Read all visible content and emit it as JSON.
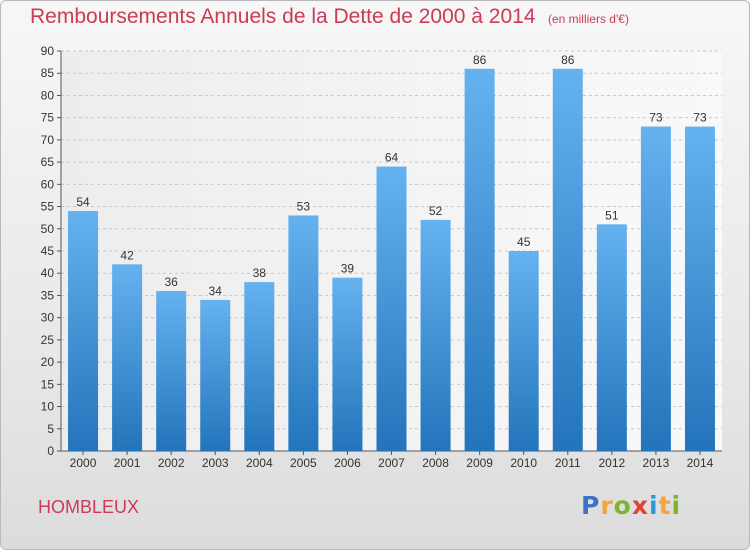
{
  "title": "Remboursements Annuels de la Dette de 2000 à 2014",
  "unit": "(en milliers d'€)",
  "commune": "HOMBLEUX",
  "logo": {
    "letters": [
      "P",
      "r",
      "o",
      "x",
      "i",
      "t",
      "i"
    ],
    "colors": [
      "#3b74c4",
      "#f2a53b",
      "#7fb431",
      "#e0433b",
      "#2b9ad6",
      "#f2a53b",
      "#7fb431"
    ]
  },
  "colors": {
    "bar": "#2f8fdc",
    "bar_dark": "#2a78c2",
    "title": "#cc3a57"
  },
  "chart_data": {
    "type": "bar",
    "categories": [
      "2000",
      "2001",
      "2002",
      "2003",
      "2004",
      "2005",
      "2006",
      "2007",
      "2008",
      "2009",
      "2010",
      "2011",
      "2012",
      "2013",
      "2014"
    ],
    "values": [
      54,
      42,
      36,
      34,
      38,
      53,
      39,
      64,
      52,
      86,
      45,
      86,
      51,
      73,
      73
    ],
    "data_labels": [
      "54",
      "42",
      "36",
      "34",
      "38",
      "53",
      "39",
      "64",
      "52",
      "86",
      "45",
      "86",
      "51",
      "73",
      "73"
    ],
    "title": "Remboursements Annuels de la Dette de 2000 à 2014",
    "xlabel": "",
    "ylabel": "",
    "ylim": [
      0,
      90
    ],
    "yticks": [
      0,
      5,
      10,
      15,
      20,
      25,
      30,
      35,
      40,
      45,
      50,
      55,
      60,
      65,
      70,
      75,
      80,
      85,
      90
    ],
    "grid": true,
    "legend": "none"
  }
}
